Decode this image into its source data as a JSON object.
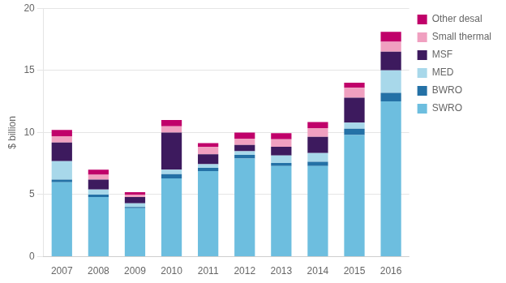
{
  "chart_data": {
    "type": "bar",
    "ylabel": "$ billion",
    "categories": [
      "2007",
      "2008",
      "2009",
      "2010",
      "2011",
      "2012",
      "2013",
      "2014",
      "2015",
      "2016"
    ],
    "series": [
      {
        "name": "SWRO",
        "color": "#6DBEDF",
        "values": [
          6.0,
          4.8,
          3.9,
          6.3,
          6.9,
          7.9,
          7.3,
          7.3,
          9.8,
          12.5
        ]
      },
      {
        "name": "BWRO",
        "color": "#2471A6",
        "values": [
          0.2,
          0.2,
          0.1,
          0.35,
          0.25,
          0.3,
          0.25,
          0.35,
          0.5,
          0.7
        ]
      },
      {
        "name": "MED",
        "color": "#A8D8EA",
        "values": [
          1.5,
          0.4,
          0.3,
          0.35,
          0.3,
          0.3,
          0.6,
          0.7,
          0.5,
          1.8
        ]
      },
      {
        "name": "MSF",
        "color": "#3D1A5E",
        "values": [
          1.5,
          0.8,
          0.5,
          3.0,
          0.8,
          0.5,
          0.7,
          1.3,
          2.0,
          1.5
        ]
      },
      {
        "name": "Small thermal",
        "color": "#F0A0C0",
        "values": [
          0.5,
          0.4,
          0.2,
          0.5,
          0.6,
          0.5,
          0.6,
          0.7,
          0.8,
          0.8
        ]
      },
      {
        "name": "Other desal",
        "color": "#C0006A",
        "values": [
          0.5,
          0.4,
          0.2,
          0.5,
          0.3,
          0.5,
          0.5,
          0.5,
          0.4,
          0.8
        ]
      }
    ],
    "ylim": [
      0,
      20
    ],
    "yticks": [
      0,
      5,
      10,
      15,
      20
    ],
    "stacked": true,
    "grid": true,
    "legend": "right"
  }
}
